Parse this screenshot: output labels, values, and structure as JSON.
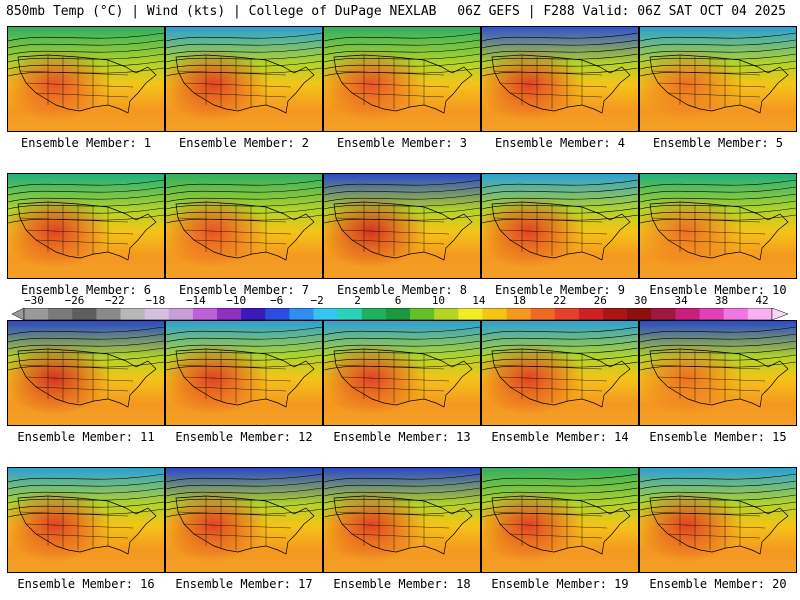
{
  "header": {
    "left_title": "850mb Temp (°C) | Wind (kts) | College of DuPage NEXLAB",
    "right_title": "06Z GEFS | F288 Valid: 06Z SAT OCT 04 2025"
  },
  "colorbar": {
    "tick_labels": [
      "−30",
      "−26",
      "−22",
      "−18",
      "−14",
      "−10",
      "−6",
      "−2",
      "2",
      "6",
      "10",
      "14",
      "18",
      "22",
      "26",
      "30",
      "34",
      "38",
      "42"
    ],
    "colors": [
      "#9a9a9a",
      "#7a7a7a",
      "#5e5e5e",
      "#8a8a8a",
      "#b8b8b8",
      "#d6c0e0",
      "#c8a0d8",
      "#c060d8",
      "#9030c0",
      "#3a1ab8",
      "#2a4ee0",
      "#2f8ef0",
      "#36c4f0",
      "#2cd2b8",
      "#1fb060",
      "#1a9a40",
      "#64c028",
      "#b4d428",
      "#f0ec2a",
      "#f4c418",
      "#f49820",
      "#ec6a24",
      "#e0422a",
      "#cc2222",
      "#aa1616",
      "#8c1010",
      "#a01840",
      "#c8207a",
      "#e040b8",
      "#f078e0",
      "#f8b0f0"
    ]
  },
  "panels": [
    {
      "label": "Ensemble Member: 1",
      "cold": "#30b060",
      "warm": "#e84a28"
    },
    {
      "label": "Ensemble Member: 2",
      "cold": "#2aa0d8",
      "warm": "#e03a24"
    },
    {
      "label": "Ensemble Member: 3",
      "cold": "#30b060",
      "warm": "#e84a28"
    },
    {
      "label": "Ensemble Member: 4",
      "cold": "#3050d0",
      "warm": "#e03a24"
    },
    {
      "label": "Ensemble Member: 5",
      "cold": "#2aa0d8",
      "warm": "#ec6a24"
    },
    {
      "label": "Ensemble Member: 6",
      "cold": "#1fb07a",
      "warm": "#e03a24"
    },
    {
      "label": "Ensemble Member: 7",
      "cold": "#30b060",
      "warm": "#e84a28"
    },
    {
      "label": "Ensemble Member: 8",
      "cold": "#2848c8",
      "warm": "#d42a22"
    },
    {
      "label": "Ensemble Member: 9",
      "cold": "#2aa0d8",
      "warm": "#e03a24"
    },
    {
      "label": "Ensemble Member: 10",
      "cold": "#1fb07a",
      "warm": "#ec6a24"
    },
    {
      "label": "Ensemble Member: 11",
      "cold": "#2848c8",
      "warm": "#d42a22"
    },
    {
      "label": "Ensemble Member: 12",
      "cold": "#2aa0d8",
      "warm": "#e03a24"
    },
    {
      "label": "Ensemble Member: 13",
      "cold": "#2aa0d8",
      "warm": "#e03a24"
    },
    {
      "label": "Ensemble Member: 14",
      "cold": "#2aa0d8",
      "warm": "#e03a24"
    },
    {
      "label": "Ensemble Member: 15",
      "cold": "#2848c8",
      "warm": "#ec6a24"
    },
    {
      "label": "Ensemble Member: 16",
      "cold": "#2aa0d8",
      "warm": "#e03a24"
    },
    {
      "label": "Ensemble Member: 17",
      "cold": "#2848c8",
      "warm": "#e03a24"
    },
    {
      "label": "Ensemble Member: 18",
      "cold": "#2848c8",
      "warm": "#e03a24"
    },
    {
      "label": "Ensemble Member: 19",
      "cold": "#30b060",
      "warm": "#e03a24"
    },
    {
      "label": "Ensemble Member: 20",
      "cold": "#2aa0d8",
      "warm": "#e03a24"
    }
  ]
}
